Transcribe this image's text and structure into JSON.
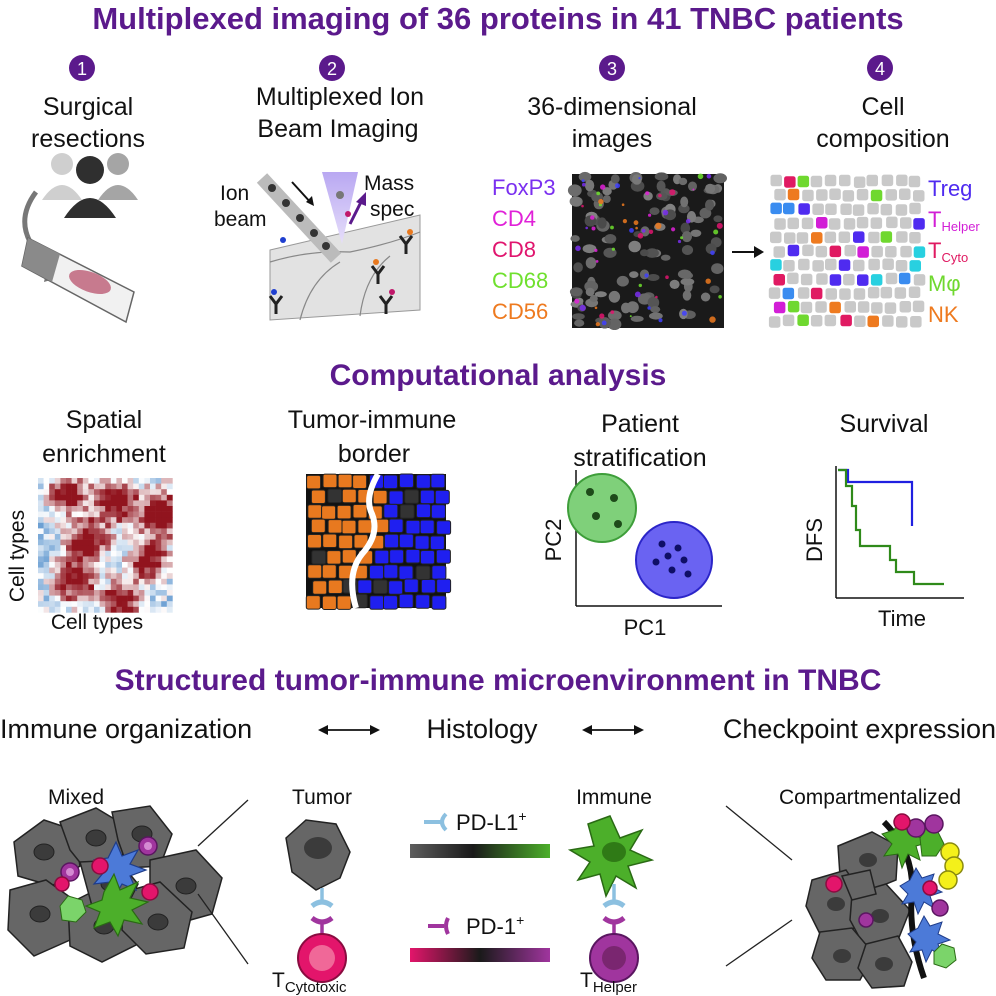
{
  "titles": {
    "main": "Multiplexed imaging of 36 proteins in 41 TNBC patients",
    "computational": "Computational analysis",
    "structured": "Structured tumor-immune microenvironment in TNBC"
  },
  "steps": [
    {
      "number": "1",
      "line1": "Surgical",
      "line2": "resections"
    },
    {
      "number": "2",
      "line1": "Multiplexed Ion",
      "line2": "Beam Imaging"
    },
    {
      "number": "3",
      "line1": "36-dimensional",
      "line2": "images"
    },
    {
      "number": "4",
      "line1": "Cell",
      "line2": "composition"
    }
  ],
  "mibi": {
    "ion_line1": "Ion",
    "ion_line2": "beam",
    "mass_line1": "Mass",
    "mass_line2": "spec"
  },
  "markers": [
    {
      "label": "FoxP3",
      "color": "#7a2ff0"
    },
    {
      "label": "CD4",
      "color": "#e021d8"
    },
    {
      "label": "CD8",
      "color": "#e0156e"
    },
    {
      "label": "CD68",
      "color": "#6fe02e"
    },
    {
      "label": "CD56",
      "color": "#ee7a1f"
    }
  ],
  "cell_types": [
    {
      "label": "Treg",
      "sub": "",
      "color": "#4f2bf0"
    },
    {
      "label": "T",
      "sub": "Helper",
      "color": "#d21ed6"
    },
    {
      "label": "T",
      "sub": "Cyto",
      "color": "#e01a62"
    },
    {
      "label": "Mφ",
      "sub": "",
      "color": "#6fd82f"
    },
    {
      "label": "NK",
      "sub": "",
      "color": "#ee7a1f"
    }
  ],
  "analysis": {
    "spatial_line1": "Spatial",
    "spatial_line2": "enrichment",
    "axis_y": "Cell types",
    "axis_x": "Cell types",
    "border_line1": "Tumor-immune",
    "border_line2": "border",
    "strat_line1": "Patient",
    "strat_line2": "stratification",
    "pc1": "PC1",
    "pc2": "PC2",
    "survival": "Survival",
    "dfs": "DFS",
    "time": "Time"
  },
  "relations": {
    "immune_org": "Immune organization",
    "histology": "Histology",
    "checkpoint": "Checkpoint expression",
    "arrow": "⟷"
  },
  "bottom": {
    "mixed": "Mixed",
    "tumor": "Tumor",
    "immune": "Immune",
    "compartmentalized": "Compartmentalized",
    "pdl1": "PD-L1",
    "pd1": "PD-1",
    "plus": "+",
    "t_cyto_main": "T",
    "t_cyto_sub": "Cytotoxic",
    "t_helper_main": "T",
    "t_helper_sub": "Helper"
  },
  "colors": {
    "purple": "#5b1a8c",
    "tumor_orange": "#e8791f",
    "immune_blue": "#1f1ff0",
    "cluster_green": "#7fd07a",
    "cluster_blue": "#6a63f2",
    "survival_blue": "#2020e0",
    "survival_green": "#2f8a1a",
    "tumor_gray": "#5e5e5e",
    "macrophage_green": "#4caf2a",
    "cyto_pink": "#e3156b",
    "helper_purple": "#a0359e",
    "receptor_blue": "#8cc0e0"
  }
}
